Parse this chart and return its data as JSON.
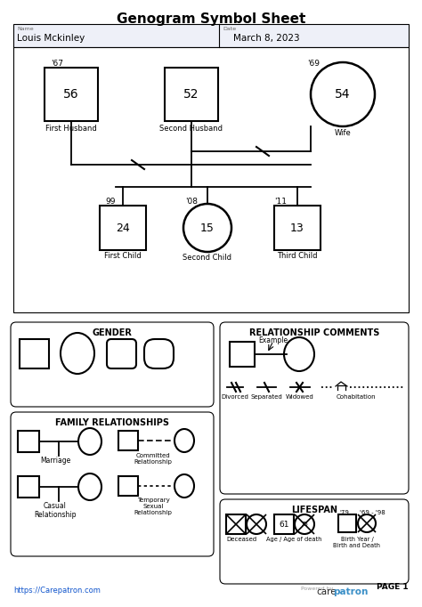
{
  "title": "Genogram Symbol Sheet",
  "name_label": "Name",
  "name_value": "Louis Mckinley",
  "date_label": "Date",
  "date_value": "March 8, 2023",
  "bg_color": "#ffffff",
  "page_label": "PAGE 1",
  "url": "https://Carepatron.com"
}
